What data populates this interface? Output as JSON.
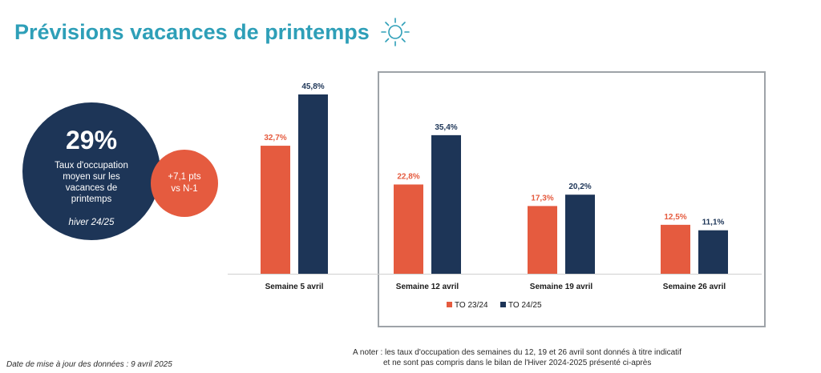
{
  "title": "Prévisions vacances de printemps",
  "icons": {
    "title_icon": "sun-icon"
  },
  "colors": {
    "title": "#2e9fb8",
    "navy": "#1d3557",
    "coral": "#e55b3f"
  },
  "kpi": {
    "value": "29%",
    "label": "Taux d'occupation moyen sur les vacances de printemps",
    "season": "hiver 24/25",
    "delta_line1": "+7,1 pts",
    "delta_line2": "vs N-1"
  },
  "chart_data": {
    "type": "bar",
    "categories": [
      "Semaine 5 avril",
      "Semaine 12 avril",
      "Semaine 19 avril",
      "Semaine 26 avril"
    ],
    "series": [
      {
        "name": "TO 23/24",
        "values": [
          32.7,
          22.8,
          17.3,
          12.5
        ],
        "labels": [
          "32,7%",
          "22,8%",
          "17,3%",
          "12,5%"
        ],
        "color": "#e55b3f"
      },
      {
        "name": "TO 24/25",
        "values": [
          45.8,
          35.4,
          20.2,
          11.1
        ],
        "labels": [
          "45,8%",
          "35,4%",
          "20,2%",
          "11,1%"
        ],
        "color": "#1d3557"
      }
    ],
    "ylim": [
      0,
      45.8
    ],
    "legend": "bottom",
    "grid": false
  },
  "footer": {
    "update_note": "Date de mise à jour des données : 9 avril 2025",
    "note_line1": "A noter : les taux d'occupation des semaines du 12, 19 et 26 avril sont donnés à titre indicatif",
    "note_line2": "et ne sont pas compris dans le bilan de l'Hiver 2024-2025 présenté ci-après"
  }
}
